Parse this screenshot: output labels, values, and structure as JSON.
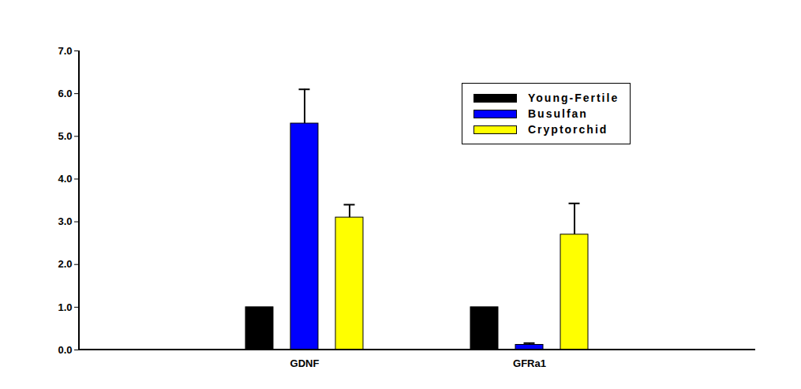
{
  "chart_data": {
    "type": "bar",
    "categories": [
      "GDNF",
      "GFRa1"
    ],
    "series": [
      {
        "name": "Young-Fertile",
        "color": "#000000",
        "values": [
          1,
          1
        ]
      },
      {
        "name": "Busulfan",
        "color": "#0000ff",
        "values": [
          5.3,
          0.12
        ],
        "errors": [
          0.8,
          0.04
        ]
      },
      {
        "name": "Cryptorchid",
        "color": "#ffff00",
        "values": [
          3.1,
          2.7
        ],
        "errors": [
          0.3,
          0.73
        ]
      }
    ],
    "ylim": [
      0,
      7
    ],
    "yticks": [
      0,
      1,
      2,
      3,
      4,
      5,
      6,
      7
    ],
    "legend": "top-right"
  }
}
